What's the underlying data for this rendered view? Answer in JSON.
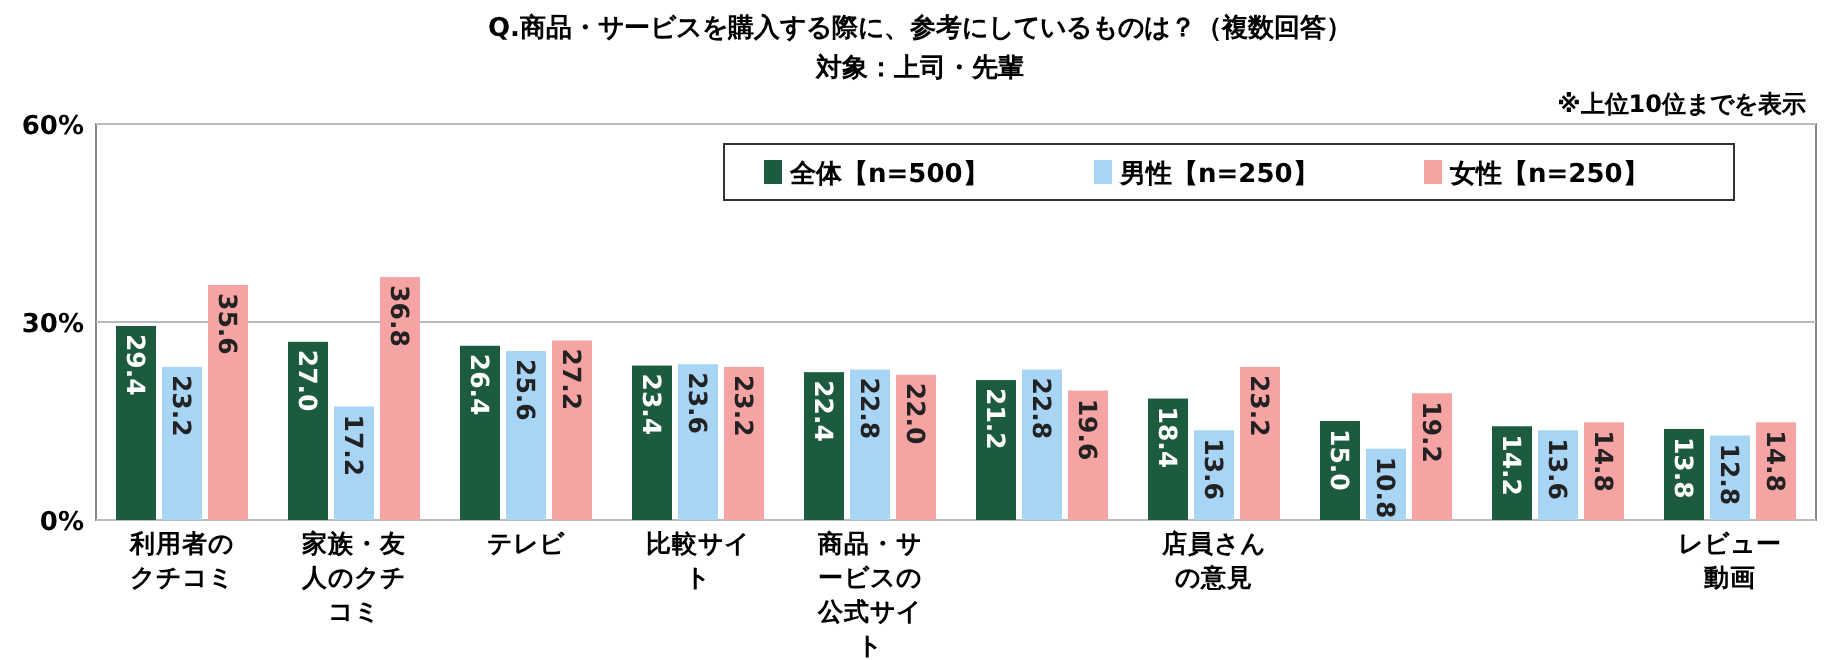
{
  "chart_data": {
    "type": "bar",
    "title": "Q.商品・サービスを購入する際に、参考にしているものは？（複数回答）",
    "subtitle": "対象：上司・先輩",
    "annotations": [
      "※上位10位までを表示"
    ],
    "categories": [
      "利用者のクチコミ",
      "家族・友人のクチコミ",
      "テレビ",
      "比較サイト",
      "商品・サービスの公式サイト",
      null,
      "店員さんの意見",
      null,
      null,
      "レビュー動画"
    ],
    "series": [
      {
        "name": "全体【n=500】",
        "color": "#1d5b3e",
        "values": [
          29.4,
          27.0,
          26.4,
          23.4,
          22.4,
          21.2,
          18.4,
          15.0,
          14.2,
          13.8
        ],
        "value_labels": [
          "29.4",
          "27.0",
          "26.4",
          "23.4",
          "22.4",
          "21.2",
          "18.4",
          "15.0",
          "14.2",
          "13.8"
        ]
      },
      {
        "name": "男性【n=250】",
        "color": "#a8d4f5",
        "values": [
          23.2,
          17.2,
          25.6,
          23.6,
          22.8,
          22.8,
          13.6,
          10.8,
          13.6,
          12.8
        ],
        "value_labels": [
          "23.2",
          "17.2",
          "25.6",
          "23.6",
          "22.8",
          "22.8",
          "13.6",
          "10.8",
          "13.6",
          "12.8"
        ]
      },
      {
        "name": "女性【n=250】",
        "color": "#f5a3a3",
        "values": [
          35.6,
          36.8,
          27.2,
          23.2,
          22.0,
          19.6,
          23.2,
          19.2,
          14.8,
          14.8
        ],
        "value_labels": [
          "35.6",
          "36.8",
          "27.2",
          "23.2",
          "22.0",
          "19.6",
          "23.2",
          "19.2",
          "14.8",
          "14.8"
        ]
      }
    ],
    "ylim": [
      0,
      60
    ],
    "yticks": [
      {
        "value": 0,
        "label": "0%"
      },
      {
        "value": 30,
        "label": "30%"
      },
      {
        "value": 60,
        "label": "60%"
      }
    ],
    "grid": "y",
    "legend": "top right"
  }
}
